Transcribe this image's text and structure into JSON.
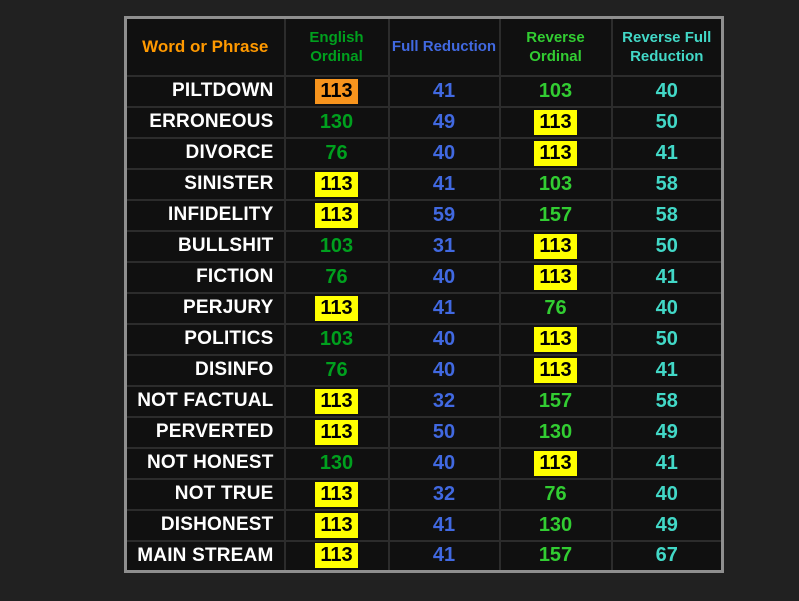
{
  "table": {
    "word_header": "Word or Phrase",
    "word_header_color": "#ff9900",
    "word_color": "#ffffff",
    "columns": [
      {
        "label": "English Ordinal",
        "color": "#00a01e"
      },
      {
        "label": "Full Reduction",
        "color": "#4169e1"
      },
      {
        "label": "Reverse Ordinal",
        "color": "#32cd32"
      },
      {
        "label": "Reverse Full Reduction",
        "color": "#42d8c7"
      }
    ],
    "highlight_colors": {
      "yellow": "#ffff00",
      "orange": "#f7941d"
    },
    "highlight_text_color": "#000000",
    "rows": [
      {
        "word": "PILTDOWN",
        "cells": [
          {
            "v": "113",
            "hl": "orange"
          },
          {
            "v": "41"
          },
          {
            "v": "103"
          },
          {
            "v": "40"
          }
        ]
      },
      {
        "word": "ERRONEOUS",
        "cells": [
          {
            "v": "130"
          },
          {
            "v": "49"
          },
          {
            "v": "113",
            "hl": "yellow"
          },
          {
            "v": "50"
          }
        ]
      },
      {
        "word": "DIVORCE",
        "cells": [
          {
            "v": "76"
          },
          {
            "v": "40"
          },
          {
            "v": "113",
            "hl": "yellow"
          },
          {
            "v": "41"
          }
        ]
      },
      {
        "word": "SINISTER",
        "cells": [
          {
            "v": "113",
            "hl": "yellow"
          },
          {
            "v": "41"
          },
          {
            "v": "103"
          },
          {
            "v": "58"
          }
        ]
      },
      {
        "word": "INFIDELITY",
        "cells": [
          {
            "v": "113",
            "hl": "yellow"
          },
          {
            "v": "59"
          },
          {
            "v": "157"
          },
          {
            "v": "58"
          }
        ]
      },
      {
        "word": "BULLSHIT",
        "cells": [
          {
            "v": "103"
          },
          {
            "v": "31"
          },
          {
            "v": "113",
            "hl": "yellow"
          },
          {
            "v": "50"
          }
        ]
      },
      {
        "word": "FICTION",
        "cells": [
          {
            "v": "76"
          },
          {
            "v": "40"
          },
          {
            "v": "113",
            "hl": "yellow"
          },
          {
            "v": "41"
          }
        ]
      },
      {
        "word": "PERJURY",
        "cells": [
          {
            "v": "113",
            "hl": "yellow"
          },
          {
            "v": "41"
          },
          {
            "v": "76"
          },
          {
            "v": "40"
          }
        ]
      },
      {
        "word": "POLITICS",
        "cells": [
          {
            "v": "103"
          },
          {
            "v": "40"
          },
          {
            "v": "113",
            "hl": "yellow"
          },
          {
            "v": "50"
          }
        ]
      },
      {
        "word": "DISINFO",
        "cells": [
          {
            "v": "76"
          },
          {
            "v": "40"
          },
          {
            "v": "113",
            "hl": "yellow"
          },
          {
            "v": "41"
          }
        ]
      },
      {
        "word": "NOT FACTUAL",
        "cells": [
          {
            "v": "113",
            "hl": "yellow"
          },
          {
            "v": "32"
          },
          {
            "v": "157"
          },
          {
            "v": "58"
          }
        ]
      },
      {
        "word": "PERVERTED",
        "cells": [
          {
            "v": "113",
            "hl": "yellow"
          },
          {
            "v": "50"
          },
          {
            "v": "130"
          },
          {
            "v": "49"
          }
        ]
      },
      {
        "word": "NOT HONEST",
        "cells": [
          {
            "v": "130"
          },
          {
            "v": "40"
          },
          {
            "v": "113",
            "hl": "yellow"
          },
          {
            "v": "41"
          }
        ]
      },
      {
        "word": "NOT TRUE",
        "cells": [
          {
            "v": "113",
            "hl": "yellow"
          },
          {
            "v": "32"
          },
          {
            "v": "76"
          },
          {
            "v": "40"
          }
        ]
      },
      {
        "word": "DISHONEST",
        "cells": [
          {
            "v": "113",
            "hl": "yellow"
          },
          {
            "v": "41"
          },
          {
            "v": "130"
          },
          {
            "v": "49"
          }
        ]
      },
      {
        "word": "MAIN STREAM",
        "cells": [
          {
            "v": "113",
            "hl": "yellow"
          },
          {
            "v": "41"
          },
          {
            "v": "157"
          },
          {
            "v": "67"
          }
        ]
      }
    ]
  }
}
